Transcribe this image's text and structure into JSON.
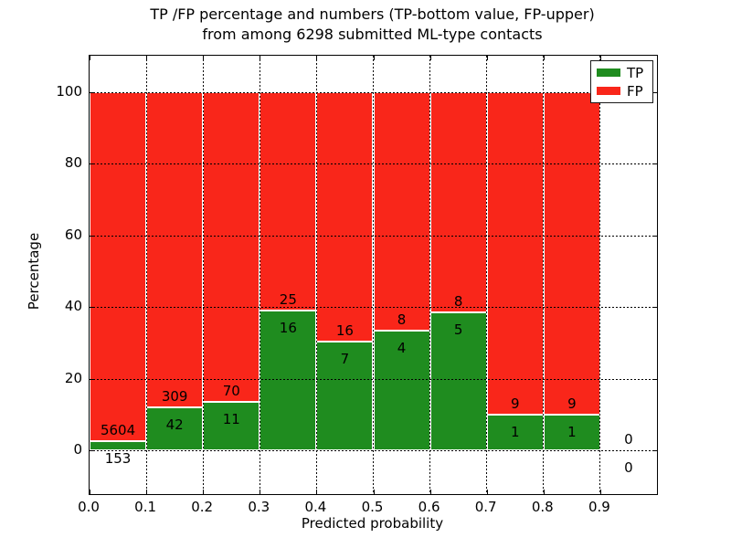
{
  "figure": {
    "title_line1": "TP /FP percentage and numbers (TP-bottom value, FP-upper)",
    "title_line2": "from among 6298 submitted ML-type contacts",
    "xlabel": "Predicted probability",
    "ylabel": "Percentage"
  },
  "legend": {
    "items": [
      {
        "label": "TP",
        "color": "#1f8c1f"
      },
      {
        "label": "FP",
        "color": "#f9261a"
      }
    ],
    "position": "upper right"
  },
  "chart_data": {
    "type": "bar",
    "stacked": true,
    "normalized": "percent_of_bin_total",
    "title": "TP /FP percentage and numbers (TP-bottom value, FP-upper) from among 6298 submitted ML-type contacts",
    "xlabel": "Predicted probability",
    "ylabel": "Percentage",
    "total_contacts": 6298,
    "bin_width": 0.1,
    "bin_starts": [
      0.0,
      0.1,
      0.2,
      0.3,
      0.4,
      0.5,
      0.6,
      0.7,
      0.8,
      0.9
    ],
    "series": [
      {
        "name": "TP",
        "color": "#1f8c1f",
        "counts": [
          153,
          42,
          11,
          16,
          7,
          4,
          5,
          1,
          1,
          0
        ]
      },
      {
        "name": "FP",
        "color": "#f9261a",
        "counts": [
          5604,
          309,
          70,
          25,
          16,
          8,
          8,
          9,
          9,
          0
        ]
      }
    ],
    "tp_percent_of_bin": [
      2.66,
      11.97,
      13.58,
      39.02,
      30.43,
      33.33,
      38.46,
      10.0,
      10.0,
      0.0
    ],
    "xticks": [
      "0.0",
      "0.1",
      "0.2",
      "0.3",
      "0.4",
      "0.5",
      "0.6",
      "0.7",
      "0.8",
      "0.9"
    ],
    "yticks": [
      0,
      20,
      40,
      60,
      80,
      100
    ],
    "xlim": [
      0.0,
      1.0
    ],
    "ylim": [
      -12,
      110
    ],
    "grid": "dotted",
    "legend_position": "upper right"
  }
}
